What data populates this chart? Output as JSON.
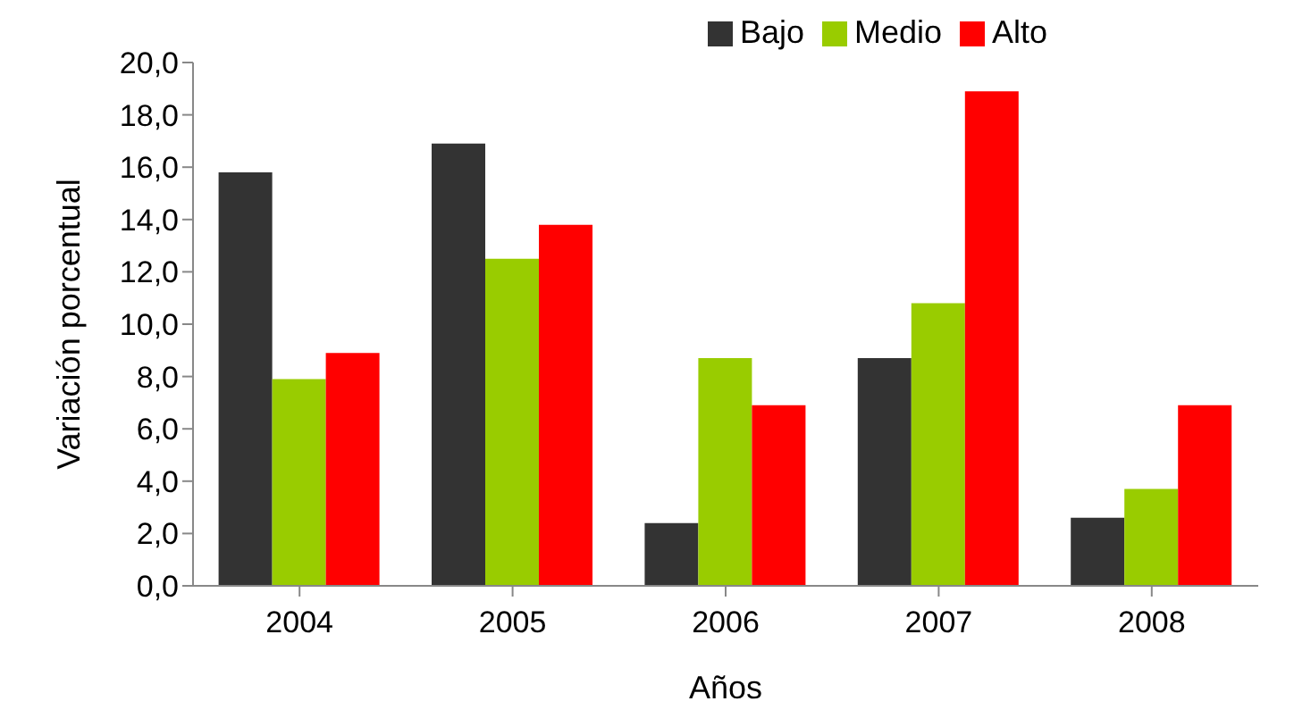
{
  "chart_data": {
    "type": "bar",
    "xlabel": "Años",
    "ylabel": "Variación porcentual",
    "categories": [
      "2004",
      "2005",
      "2006",
      "2007",
      "2008"
    ],
    "series": [
      {
        "name": "Bajo",
        "color": "#333333",
        "values": [
          15.8,
          16.9,
          2.4,
          8.7,
          2.6
        ]
      },
      {
        "name": "Medio",
        "color": "#99cc00",
        "values": [
          7.9,
          12.5,
          8.7,
          10.8,
          3.7
        ]
      },
      {
        "name": "Alto",
        "color": "#ff0000",
        "values": [
          8.9,
          13.8,
          6.9,
          18.9,
          6.9
        ]
      }
    ],
    "ylim": [
      0,
      20
    ],
    "yticks": [
      {
        "value": 0,
        "label": "0,0"
      },
      {
        "value": 2,
        "label": "2,0"
      },
      {
        "value": 4,
        "label": "4,0"
      },
      {
        "value": 6,
        "label": "6,0"
      },
      {
        "value": 8,
        "label": "8,0"
      },
      {
        "value": 10,
        "label": "10,0"
      },
      {
        "value": 12,
        "label": "12,0"
      },
      {
        "value": 14,
        "label": "14,0"
      },
      {
        "value": 16,
        "label": "16,0"
      },
      {
        "value": 18,
        "label": "18,0"
      },
      {
        "value": 20,
        "label": "20,0"
      }
    ],
    "grid": false,
    "legend": "top"
  }
}
